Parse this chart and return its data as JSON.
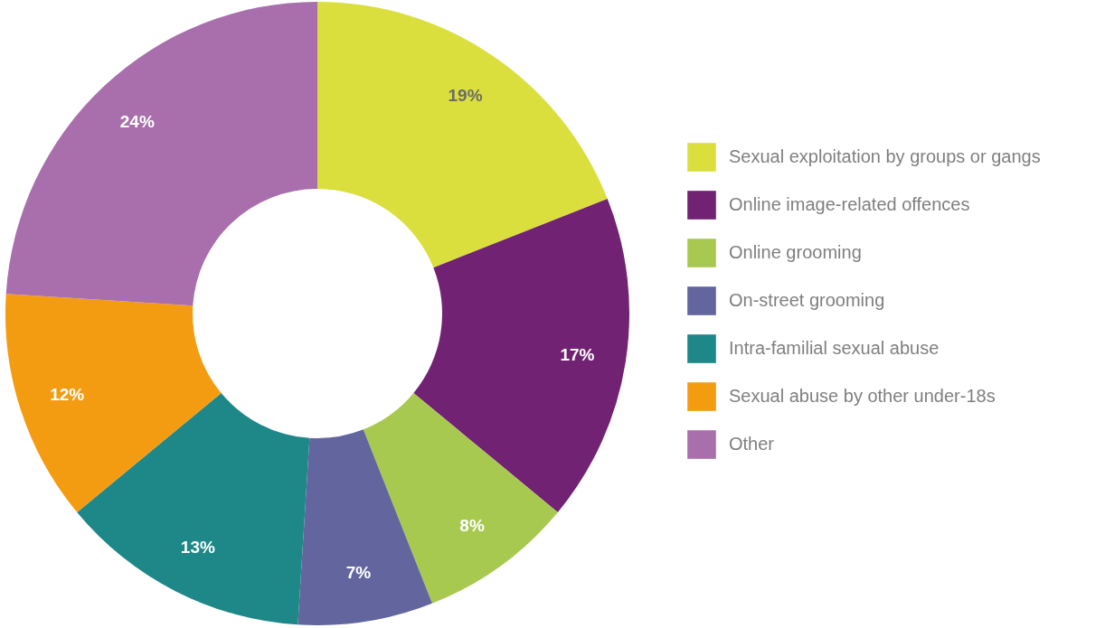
{
  "chart_data": {
    "type": "donut",
    "categories": [
      "Sexual exploitation by groups or gangs",
      "Online image-related offences",
      "Online grooming",
      "On-street grooming",
      "Intra-familial sexual abuse",
      "Sexual abuse by other under-18s",
      "Other"
    ],
    "values": [
      19,
      17,
      8,
      7,
      13,
      12,
      24
    ],
    "colors": [
      "#dadf3e",
      "#712273",
      "#a7c94f",
      "#63669e",
      "#1e8788",
      "#f39c12",
      "#a86fac"
    ],
    "value_labels": [
      "19%",
      "17%",
      "8%",
      "7%",
      "13%",
      "12%",
      "24%"
    ],
    "legend": "right"
  }
}
